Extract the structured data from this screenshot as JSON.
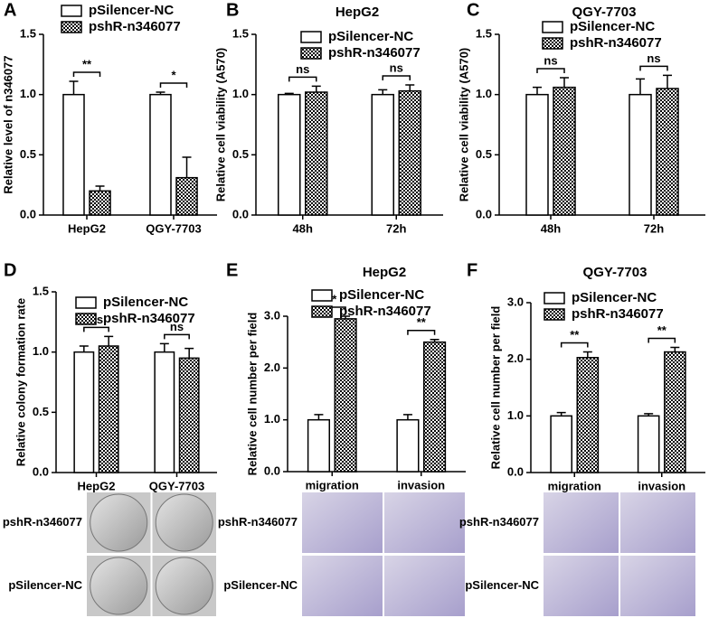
{
  "chart_data": [
    {
      "type": "bar",
      "panel": "A",
      "ylabel": "Relative level of n346077",
      "categories": [
        "HepG2",
        "QGY-7703"
      ],
      "series": [
        {
          "name": "pSilencer-NC",
          "color": "#ffffff",
          "values": [
            1.0,
            1.0
          ],
          "errors": [
            0.11,
            0.02
          ]
        },
        {
          "name": "pshR-n346077",
          "color": "#000000",
          "pattern": "checker",
          "values": [
            0.2,
            0.31
          ],
          "errors": [
            0.04,
            0.17
          ]
        }
      ],
      "annotations": [
        "**",
        "*"
      ],
      "ylim": [
        0,
        1.5
      ],
      "yticks": [
        {
          "value": 0,
          "label": "0.0"
        },
        0.5,
        {
          "value": 1,
          "label": "1.0"
        },
        1.5
      ]
    },
    {
      "type": "bar",
      "panel": "B",
      "title": "HepG2",
      "ylabel": "Relative cell viability (A570)",
      "categories": [
        "48h",
        "72h"
      ],
      "series": [
        {
          "name": "pSilencer-NC",
          "color": "#ffffff",
          "values": [
            1.0,
            1.0
          ],
          "errors": [
            0.01,
            0.04
          ]
        },
        {
          "name": "pshR-n346077",
          "color": "#000000",
          "pattern": "checker",
          "values": [
            1.02,
            1.03
          ],
          "errors": [
            0.05,
            0.05
          ]
        }
      ],
      "annotations": [
        "ns",
        "ns"
      ],
      "ylim": [
        0,
        1.5
      ],
      "yticks": [
        {
          "value": 0,
          "label": "0.0"
        },
        0.5,
        {
          "value": 1,
          "label": "1.0"
        },
        1.5
      ]
    },
    {
      "type": "bar",
      "panel": "C",
      "title": "QGY-7703",
      "ylabel": "Relative cell viability (A570)",
      "categories": [
        "48h",
        "72h"
      ],
      "series": [
        {
          "name": "pSilencer-NC",
          "color": "#ffffff",
          "values": [
            1.0,
            1.0
          ],
          "errors": [
            0.06,
            0.13
          ]
        },
        {
          "name": "pshR-n346077",
          "color": "#000000",
          "pattern": "checker",
          "values": [
            1.06,
            1.05
          ],
          "errors": [
            0.08,
            0.11
          ]
        }
      ],
      "annotations": [
        "ns",
        "ns"
      ],
      "ylim": [
        0,
        1.5
      ],
      "yticks": [
        {
          "value": 0,
          "label": "0.0"
        },
        0.5,
        {
          "value": 1,
          "label": "1.0"
        },
        1.5
      ]
    },
    {
      "type": "bar",
      "panel": "D",
      "ylabel": "Relative colony formation rate",
      "categories": [
        "HepG2",
        "QGY-7703"
      ],
      "series": [
        {
          "name": "pSilencer-NC",
          "color": "#ffffff",
          "values": [
            1.0,
            1.0
          ],
          "errors": [
            0.05,
            0.07
          ]
        },
        {
          "name": "pshR-n346077",
          "color": "#000000",
          "pattern": "checker",
          "values": [
            1.05,
            0.95
          ],
          "errors": [
            0.08,
            0.08
          ]
        }
      ],
      "annotations": [
        "ns",
        "ns"
      ],
      "image_labels": [
        "pshR-n346077",
        "pSilencer-NC"
      ],
      "ylim": [
        0,
        1.5
      ],
      "yticks": [
        {
          "value": 0,
          "label": "0.0"
        },
        0.5,
        {
          "value": 1,
          "label": "1.0"
        },
        1.5
      ]
    },
    {
      "type": "bar",
      "panel": "E",
      "title": "HepG2",
      "ylabel": "Relative cell number per field",
      "categories": [
        "migration",
        "invasion"
      ],
      "series": [
        {
          "name": "pSilencer-NC",
          "color": "#ffffff",
          "values": [
            1.0,
            1.0
          ],
          "errors": [
            0.1,
            0.1
          ]
        },
        {
          "name": "pshR-n346077",
          "color": "#000000",
          "pattern": "checker",
          "values": [
            2.95,
            2.5
          ],
          "errors": [
            0.05,
            0.05
          ]
        }
      ],
      "annotations": [
        "**",
        "**"
      ],
      "image_labels": [
        "pshR-n346077",
        "pSilencer-NC"
      ],
      "ylim": [
        0,
        3
      ],
      "yticks": [
        {
          "value": 0,
          "label": "0.0"
        },
        {
          "value": 1,
          "label": "1.0"
        },
        {
          "value": 2,
          "label": "2.0"
        },
        {
          "value": 3,
          "label": "3.0"
        }
      ]
    },
    {
      "type": "bar",
      "panel": "F",
      "title": "QGY-7703",
      "ylabel": "Relative cell number per field",
      "categories": [
        "migration",
        "invasion"
      ],
      "series": [
        {
          "name": "pSilencer-NC",
          "color": "#ffffff",
          "values": [
            1.0,
            1.0
          ],
          "errors": [
            0.06,
            0.04
          ]
        },
        {
          "name": "pshR-n346077",
          "color": "#000000",
          "pattern": "checker",
          "values": [
            2.03,
            2.13
          ],
          "errors": [
            0.1,
            0.08
          ]
        }
      ],
      "annotations": [
        "**",
        "**"
      ],
      "image_labels": [
        "pshR-n346077",
        "pSilencer-NC"
      ],
      "ylim": [
        0,
        3
      ],
      "yticks": [
        {
          "value": 0,
          "label": "0.0"
        },
        {
          "value": 1,
          "label": "1.0"
        },
        {
          "value": 2,
          "label": "2.0"
        },
        {
          "value": 3,
          "label": "3.0"
        }
      ]
    }
  ]
}
